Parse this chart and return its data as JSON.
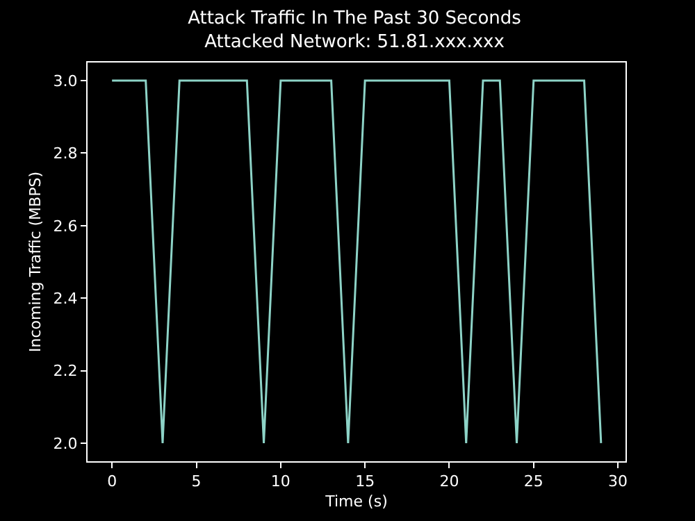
{
  "chart_data": {
    "type": "line",
    "title": "Attack Traffic In The Past 30 Seconds",
    "subtitle": "Attacked Network: 51.81.xxx.xxx",
    "xlabel": "Time (s)",
    "ylabel": "Incoming Traffic (MBPS)",
    "x": [
      0,
      1,
      2,
      3,
      4,
      5,
      6,
      7,
      8,
      9,
      10,
      11,
      12,
      13,
      14,
      15,
      16,
      17,
      18,
      19,
      20,
      21,
      22,
      23,
      24,
      25,
      26,
      27,
      28,
      29
    ],
    "series": [
      {
        "color": "#8dd3c7",
        "values": [
          3,
          3,
          3,
          2,
          3,
          3,
          3,
          3,
          3,
          2,
          3,
          3,
          3,
          3,
          2,
          3,
          3,
          3,
          3,
          3,
          3,
          2,
          3,
          3,
          2,
          3,
          3,
          3,
          3,
          2
        ]
      }
    ],
    "xlim": [
      -1.45,
      30.45
    ],
    "ylim": [
      1.95,
      3.05
    ],
    "xticks": [
      0,
      5,
      10,
      15,
      20,
      25,
      30
    ],
    "yticks": [
      {
        "value": 2,
        "label": "2.0"
      },
      {
        "value": 2.2,
        "label": "2.2"
      },
      {
        "value": 2.4,
        "label": "2.4"
      },
      {
        "value": 2.6,
        "label": "2.6"
      },
      {
        "value": 2.8,
        "label": "2.8"
      },
      {
        "value": 3,
        "label": "3.0"
      }
    ],
    "grid": false,
    "marker": "none",
    "line_style": "solid"
  }
}
